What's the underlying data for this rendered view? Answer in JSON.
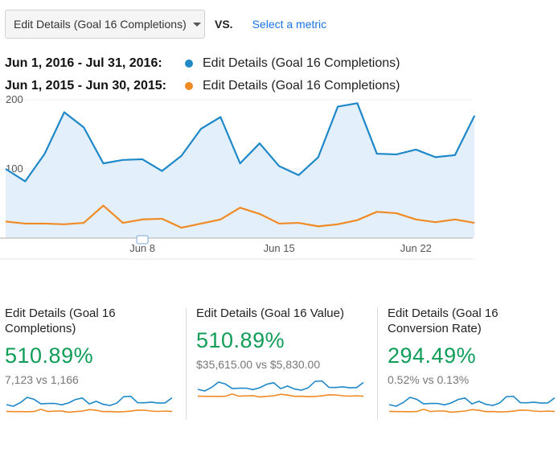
{
  "toolbar": {
    "metric_select": "Edit Details (Goal 16 Completions)",
    "vs_label": "VS.",
    "select_metric_link": "Select a metric"
  },
  "legend": [
    {
      "range": "Jun 1, 2016 - Jul 31, 2016:",
      "metric": "Edit Details (Goal 16 Completions)",
      "color": "#1e88c9"
    },
    {
      "range": "Jun 1, 2015 - Jun 30, 2015:",
      "metric": "Edit Details (Goal 16 Completions)",
      "color": "#f08a24"
    }
  ],
  "chart_data": {
    "type": "line",
    "y_ticks": [
      "200",
      "100"
    ],
    "y_tick_values": [
      200,
      100
    ],
    "x_ticks": [
      "Jun 8",
      "Jun 15",
      "Jun 22"
    ],
    "x_tick_days": [
      8,
      15,
      22
    ],
    "x_start_day": 1,
    "annotation_marker_day": 8,
    "grid": true,
    "series": [
      {
        "name": "Jun 1, 2016 - Jul 31, 2016",
        "color": "#1e88c9",
        "area": true,
        "values": [
          100,
          82,
          122,
          182,
          160,
          108,
          113,
          114,
          97,
          119,
          158,
          175,
          108,
          137,
          104,
          91,
          117,
          190,
          195,
          122,
          121,
          128,
          117,
          120,
          177
        ]
      },
      {
        "name": "Jun 1, 2015 - Jun 30, 2015",
        "color": "#f08a24",
        "area": false,
        "values": [
          24,
          21,
          21,
          20,
          22,
          47,
          22,
          27,
          28,
          15,
          21,
          27,
          44,
          35,
          21,
          22,
          17,
          20,
          26,
          38,
          36,
          27,
          23,
          27,
          22
        ]
      }
    ]
  },
  "cards": [
    {
      "title": "Edit Details (Goal 16\nCompletions)",
      "percent": "510.89%",
      "comparison": "7,123 vs 1,166"
    },
    {
      "title": "Edit Details (Goal 16 Value)",
      "percent": "510.89%",
      "comparison": "$35,615.00 vs $5,830.00"
    },
    {
      "title": "Edit Details (Goal 16\nConversion Rate)",
      "percent": "294.49%",
      "comparison": "0.52% vs 0.13%"
    }
  ]
}
